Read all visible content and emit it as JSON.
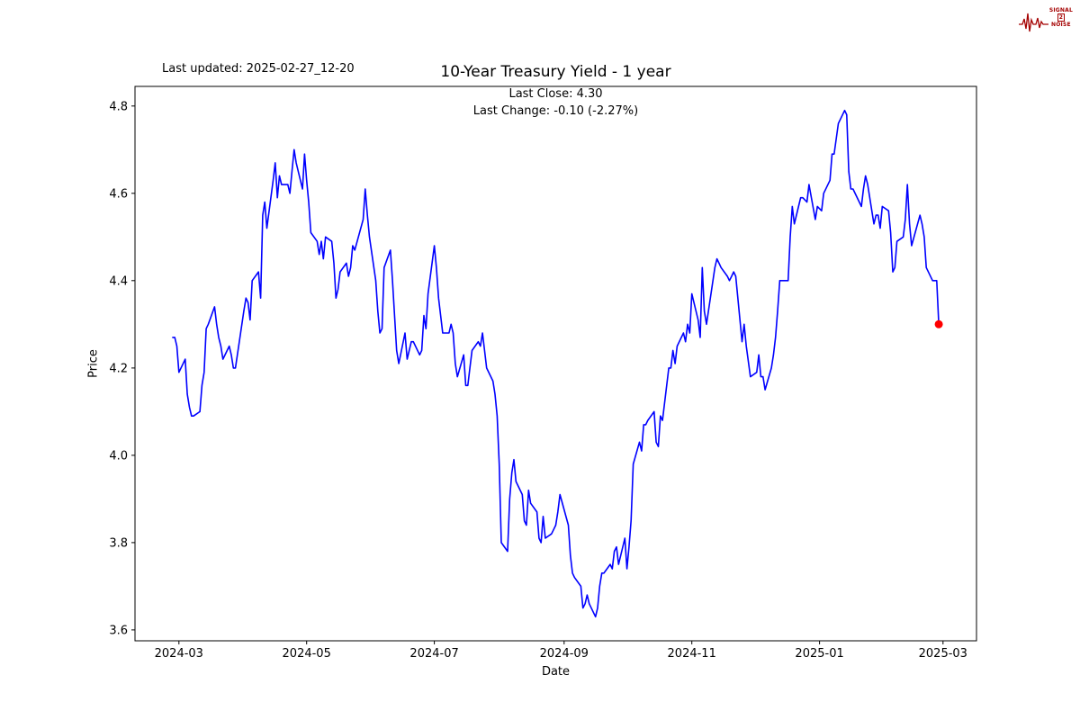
{
  "page": {
    "last_updated": "Last updated: 2025-02-27_12-20",
    "logo": {
      "line1": "SIGNAL",
      "line2": "2",
      "line3": "NOISE",
      "color": "#a40000"
    }
  },
  "chart_data": {
    "type": "line",
    "title": "10-Year Treasury Yield - 1 year",
    "subtitle_lines": [
      "Last Close: 4.30",
      "Last Change: -0.10 (-2.27%)"
    ],
    "xlabel": "Date",
    "ylabel": "Price",
    "grid": false,
    "legend": "none",
    "line_color": "#0000ff",
    "marker_color": "#ff0000",
    "ylim": [
      3.575,
      4.845
    ],
    "x_domain": [
      "2024-02-09",
      "2025-03-17"
    ],
    "y_ticks": {
      "values": [
        3.6,
        3.8,
        4.0,
        4.2,
        4.4,
        4.6,
        4.8
      ],
      "labels": [
        "3.6",
        "3.8",
        "4.0",
        "4.2",
        "4.4",
        "4.6",
        "4.8"
      ]
    },
    "x_ticks": [
      {
        "date": "2024-03-01",
        "label": "2024-03"
      },
      {
        "date": "2024-05-01",
        "label": "2024-05"
      },
      {
        "date": "2024-07-01",
        "label": "2024-07"
      },
      {
        "date": "2024-09-01",
        "label": "2024-09"
      },
      {
        "date": "2024-11-01",
        "label": "2024-11"
      },
      {
        "date": "2025-01-01",
        "label": "2025-01"
      },
      {
        "date": "2025-03-01",
        "label": "2025-03"
      }
    ],
    "last_point": {
      "date": "2025-02-27",
      "value": 4.3
    },
    "series": [
      {
        "name": "10-Year Treasury Yield",
        "points": [
          [
            "2024-02-27",
            4.27
          ],
          [
            "2024-02-28",
            4.27
          ],
          [
            "2024-02-29",
            4.25
          ],
          [
            "2024-03-01",
            4.19
          ],
          [
            "2024-03-04",
            4.22
          ],
          [
            "2024-03-05",
            4.14
          ],
          [
            "2024-03-06",
            4.11
          ],
          [
            "2024-03-07",
            4.09
          ],
          [
            "2024-03-08",
            4.09
          ],
          [
            "2024-03-11",
            4.1
          ],
          [
            "2024-03-12",
            4.16
          ],
          [
            "2024-03-13",
            4.19
          ],
          [
            "2024-03-14",
            4.29
          ],
          [
            "2024-03-15",
            4.3
          ],
          [
            "2024-03-18",
            4.34
          ],
          [
            "2024-03-19",
            4.3
          ],
          [
            "2024-03-20",
            4.27
          ],
          [
            "2024-03-21",
            4.25
          ],
          [
            "2024-03-22",
            4.22
          ],
          [
            "2024-03-25",
            4.25
          ],
          [
            "2024-03-26",
            4.23
          ],
          [
            "2024-03-27",
            4.2
          ],
          [
            "2024-03-28",
            4.2
          ],
          [
            "2024-04-01",
            4.33
          ],
          [
            "2024-04-02",
            4.36
          ],
          [
            "2024-04-03",
            4.35
          ],
          [
            "2024-04-04",
            4.31
          ],
          [
            "2024-04-05",
            4.4
          ],
          [
            "2024-04-08",
            4.42
          ],
          [
            "2024-04-09",
            4.36
          ],
          [
            "2024-04-10",
            4.55
          ],
          [
            "2024-04-11",
            4.58
          ],
          [
            "2024-04-12",
            4.52
          ],
          [
            "2024-04-15",
            4.63
          ],
          [
            "2024-04-16",
            4.67
          ],
          [
            "2024-04-17",
            4.59
          ],
          [
            "2024-04-18",
            4.64
          ],
          [
            "2024-04-19",
            4.62
          ],
          [
            "2024-04-22",
            4.62
          ],
          [
            "2024-04-23",
            4.6
          ],
          [
            "2024-04-24",
            4.65
          ],
          [
            "2024-04-25",
            4.7
          ],
          [
            "2024-04-26",
            4.67
          ],
          [
            "2024-04-29",
            4.61
          ],
          [
            "2024-04-30",
            4.69
          ],
          [
            "2024-05-01",
            4.63
          ],
          [
            "2024-05-02",
            4.58
          ],
          [
            "2024-05-03",
            4.51
          ],
          [
            "2024-05-06",
            4.49
          ],
          [
            "2024-05-07",
            4.46
          ],
          [
            "2024-05-08",
            4.49
          ],
          [
            "2024-05-09",
            4.45
          ],
          [
            "2024-05-10",
            4.5
          ],
          [
            "2024-05-13",
            4.49
          ],
          [
            "2024-05-14",
            4.44
          ],
          [
            "2024-05-15",
            4.36
          ],
          [
            "2024-05-16",
            4.38
          ],
          [
            "2024-05-17",
            4.42
          ],
          [
            "2024-05-20",
            4.44
          ],
          [
            "2024-05-21",
            4.41
          ],
          [
            "2024-05-22",
            4.43
          ],
          [
            "2024-05-23",
            4.48
          ],
          [
            "2024-05-24",
            4.47
          ],
          [
            "2024-05-28",
            4.54
          ],
          [
            "2024-05-29",
            4.61
          ],
          [
            "2024-05-30",
            4.55
          ],
          [
            "2024-05-31",
            4.5
          ],
          [
            "2024-06-03",
            4.4
          ],
          [
            "2024-06-04",
            4.33
          ],
          [
            "2024-06-05",
            4.28
          ],
          [
            "2024-06-06",
            4.29
          ],
          [
            "2024-06-07",
            4.43
          ],
          [
            "2024-06-10",
            4.47
          ],
          [
            "2024-06-11",
            4.4
          ],
          [
            "2024-06-12",
            4.32
          ],
          [
            "2024-06-13",
            4.24
          ],
          [
            "2024-06-14",
            4.21
          ],
          [
            "2024-06-17",
            4.28
          ],
          [
            "2024-06-18",
            4.22
          ],
          [
            "2024-06-20",
            4.26
          ],
          [
            "2024-06-21",
            4.26
          ],
          [
            "2024-06-24",
            4.23
          ],
          [
            "2024-06-25",
            4.24
          ],
          [
            "2024-06-26",
            4.32
          ],
          [
            "2024-06-27",
            4.29
          ],
          [
            "2024-06-28",
            4.37
          ],
          [
            "2024-07-01",
            4.48
          ],
          [
            "2024-07-02",
            4.43
          ],
          [
            "2024-07-03",
            4.36
          ],
          [
            "2024-07-05",
            4.28
          ],
          [
            "2024-07-08",
            4.28
          ],
          [
            "2024-07-09",
            4.3
          ],
          [
            "2024-07-10",
            4.28
          ],
          [
            "2024-07-11",
            4.21
          ],
          [
            "2024-07-12",
            4.18
          ],
          [
            "2024-07-15",
            4.23
          ],
          [
            "2024-07-16",
            4.16
          ],
          [
            "2024-07-17",
            4.16
          ],
          [
            "2024-07-18",
            4.2
          ],
          [
            "2024-07-19",
            4.24
          ],
          [
            "2024-07-22",
            4.26
          ],
          [
            "2024-07-23",
            4.25
          ],
          [
            "2024-07-24",
            4.28
          ],
          [
            "2024-07-25",
            4.24
          ],
          [
            "2024-07-26",
            4.2
          ],
          [
            "2024-07-29",
            4.17
          ],
          [
            "2024-07-30",
            4.14
          ],
          [
            "2024-07-31",
            4.09
          ],
          [
            "2024-08-01",
            3.98
          ],
          [
            "2024-08-02",
            3.8
          ],
          [
            "2024-08-05",
            3.78
          ],
          [
            "2024-08-06",
            3.9
          ],
          [
            "2024-08-07",
            3.96
          ],
          [
            "2024-08-08",
            3.99
          ],
          [
            "2024-08-09",
            3.94
          ],
          [
            "2024-08-12",
            3.91
          ],
          [
            "2024-08-13",
            3.85
          ],
          [
            "2024-08-14",
            3.84
          ],
          [
            "2024-08-15",
            3.92
          ],
          [
            "2024-08-16",
            3.89
          ],
          [
            "2024-08-19",
            3.87
          ],
          [
            "2024-08-20",
            3.81
          ],
          [
            "2024-08-21",
            3.8
          ],
          [
            "2024-08-22",
            3.86
          ],
          [
            "2024-08-23",
            3.81
          ],
          [
            "2024-08-26",
            3.82
          ],
          [
            "2024-08-27",
            3.83
          ],
          [
            "2024-08-28",
            3.84
          ],
          [
            "2024-08-29",
            3.87
          ],
          [
            "2024-08-30",
            3.91
          ],
          [
            "2024-09-03",
            3.84
          ],
          [
            "2024-09-04",
            3.77
          ],
          [
            "2024-09-05",
            3.73
          ],
          [
            "2024-09-06",
            3.72
          ],
          [
            "2024-09-09",
            3.7
          ],
          [
            "2024-09-10",
            3.65
          ],
          [
            "2024-09-11",
            3.66
          ],
          [
            "2024-09-12",
            3.68
          ],
          [
            "2024-09-13",
            3.66
          ],
          [
            "2024-09-16",
            3.63
          ],
          [
            "2024-09-17",
            3.65
          ],
          [
            "2024-09-18",
            3.7
          ],
          [
            "2024-09-19",
            3.73
          ],
          [
            "2024-09-20",
            3.73
          ],
          [
            "2024-09-23",
            3.75
          ],
          [
            "2024-09-24",
            3.74
          ],
          [
            "2024-09-25",
            3.78
          ],
          [
            "2024-09-26",
            3.79
          ],
          [
            "2024-09-27",
            3.75
          ],
          [
            "2024-09-30",
            3.81
          ],
          [
            "2024-10-01",
            3.74
          ],
          [
            "2024-10-02",
            3.79
          ],
          [
            "2024-10-03",
            3.85
          ],
          [
            "2024-10-04",
            3.98
          ],
          [
            "2024-10-07",
            4.03
          ],
          [
            "2024-10-08",
            4.01
          ],
          [
            "2024-10-09",
            4.07
          ],
          [
            "2024-10-10",
            4.07
          ],
          [
            "2024-10-11",
            4.08
          ],
          [
            "2024-10-14",
            4.1
          ],
          [
            "2024-10-15",
            4.03
          ],
          [
            "2024-10-16",
            4.02
          ],
          [
            "2024-10-17",
            4.09
          ],
          [
            "2024-10-18",
            4.08
          ],
          [
            "2024-10-21",
            4.2
          ],
          [
            "2024-10-22",
            4.2
          ],
          [
            "2024-10-23",
            4.24
          ],
          [
            "2024-10-24",
            4.21
          ],
          [
            "2024-10-25",
            4.25
          ],
          [
            "2024-10-28",
            4.28
          ],
          [
            "2024-10-29",
            4.26
          ],
          [
            "2024-10-30",
            4.3
          ],
          [
            "2024-10-31",
            4.28
          ],
          [
            "2024-11-01",
            4.37
          ],
          [
            "2024-11-04",
            4.31
          ],
          [
            "2024-11-05",
            4.27
          ],
          [
            "2024-11-06",
            4.43
          ],
          [
            "2024-11-07",
            4.33
          ],
          [
            "2024-11-08",
            4.3
          ],
          [
            "2024-11-12",
            4.43
          ],
          [
            "2024-11-13",
            4.45
          ],
          [
            "2024-11-14",
            4.44
          ],
          [
            "2024-11-15",
            4.43
          ],
          [
            "2024-11-18",
            4.41
          ],
          [
            "2024-11-19",
            4.4
          ],
          [
            "2024-11-20",
            4.41
          ],
          [
            "2024-11-21",
            4.42
          ],
          [
            "2024-11-22",
            4.41
          ],
          [
            "2024-11-25",
            4.26
          ],
          [
            "2024-11-26",
            4.3
          ],
          [
            "2024-11-27",
            4.25
          ],
          [
            "2024-11-29",
            4.18
          ],
          [
            "2024-12-02",
            4.19
          ],
          [
            "2024-12-03",
            4.23
          ],
          [
            "2024-12-04",
            4.18
          ],
          [
            "2024-12-05",
            4.18
          ],
          [
            "2024-12-06",
            4.15
          ],
          [
            "2024-12-09",
            4.2
          ],
          [
            "2024-12-10",
            4.23
          ],
          [
            "2024-12-11",
            4.27
          ],
          [
            "2024-12-12",
            4.33
          ],
          [
            "2024-12-13",
            4.4
          ],
          [
            "2024-12-16",
            4.4
          ],
          [
            "2024-12-17",
            4.4
          ],
          [
            "2024-12-18",
            4.5
          ],
          [
            "2024-12-19",
            4.57
          ],
          [
            "2024-12-20",
            4.53
          ],
          [
            "2024-12-23",
            4.59
          ],
          [
            "2024-12-24",
            4.59
          ],
          [
            "2024-12-26",
            4.58
          ],
          [
            "2024-12-27",
            4.62
          ],
          [
            "2024-12-30",
            4.54
          ],
          [
            "2024-12-31",
            4.57
          ],
          [
            "2025-01-02",
            4.56
          ],
          [
            "2025-01-03",
            4.6
          ],
          [
            "2025-01-06",
            4.63
          ],
          [
            "2025-01-07",
            4.69
          ],
          [
            "2025-01-08",
            4.69
          ],
          [
            "2025-01-10",
            4.76
          ],
          [
            "2025-01-13",
            4.79
          ],
          [
            "2025-01-14",
            4.78
          ],
          [
            "2025-01-15",
            4.65
          ],
          [
            "2025-01-16",
            4.61
          ],
          [
            "2025-01-17",
            4.61
          ],
          [
            "2025-01-21",
            4.57
          ],
          [
            "2025-01-22",
            4.61
          ],
          [
            "2025-01-23",
            4.64
          ],
          [
            "2025-01-24",
            4.62
          ],
          [
            "2025-01-27",
            4.53
          ],
          [
            "2025-01-28",
            4.55
          ],
          [
            "2025-01-29",
            4.55
          ],
          [
            "2025-01-30",
            4.52
          ],
          [
            "2025-01-31",
            4.57
          ],
          [
            "2025-02-03",
            4.56
          ],
          [
            "2025-02-04",
            4.51
          ],
          [
            "2025-02-05",
            4.42
          ],
          [
            "2025-02-06",
            4.43
          ],
          [
            "2025-02-07",
            4.49
          ],
          [
            "2025-02-10",
            4.5
          ],
          [
            "2025-02-11",
            4.54
          ],
          [
            "2025-02-12",
            4.62
          ],
          [
            "2025-02-13",
            4.53
          ],
          [
            "2025-02-14",
            4.48
          ],
          [
            "2025-02-18",
            4.55
          ],
          [
            "2025-02-19",
            4.53
          ],
          [
            "2025-02-20",
            4.5
          ],
          [
            "2025-02-21",
            4.43
          ],
          [
            "2025-02-24",
            4.4
          ],
          [
            "2025-02-25",
            4.4
          ],
          [
            "2025-02-26",
            4.4
          ],
          [
            "2025-02-27",
            4.3
          ]
        ]
      }
    ]
  }
}
